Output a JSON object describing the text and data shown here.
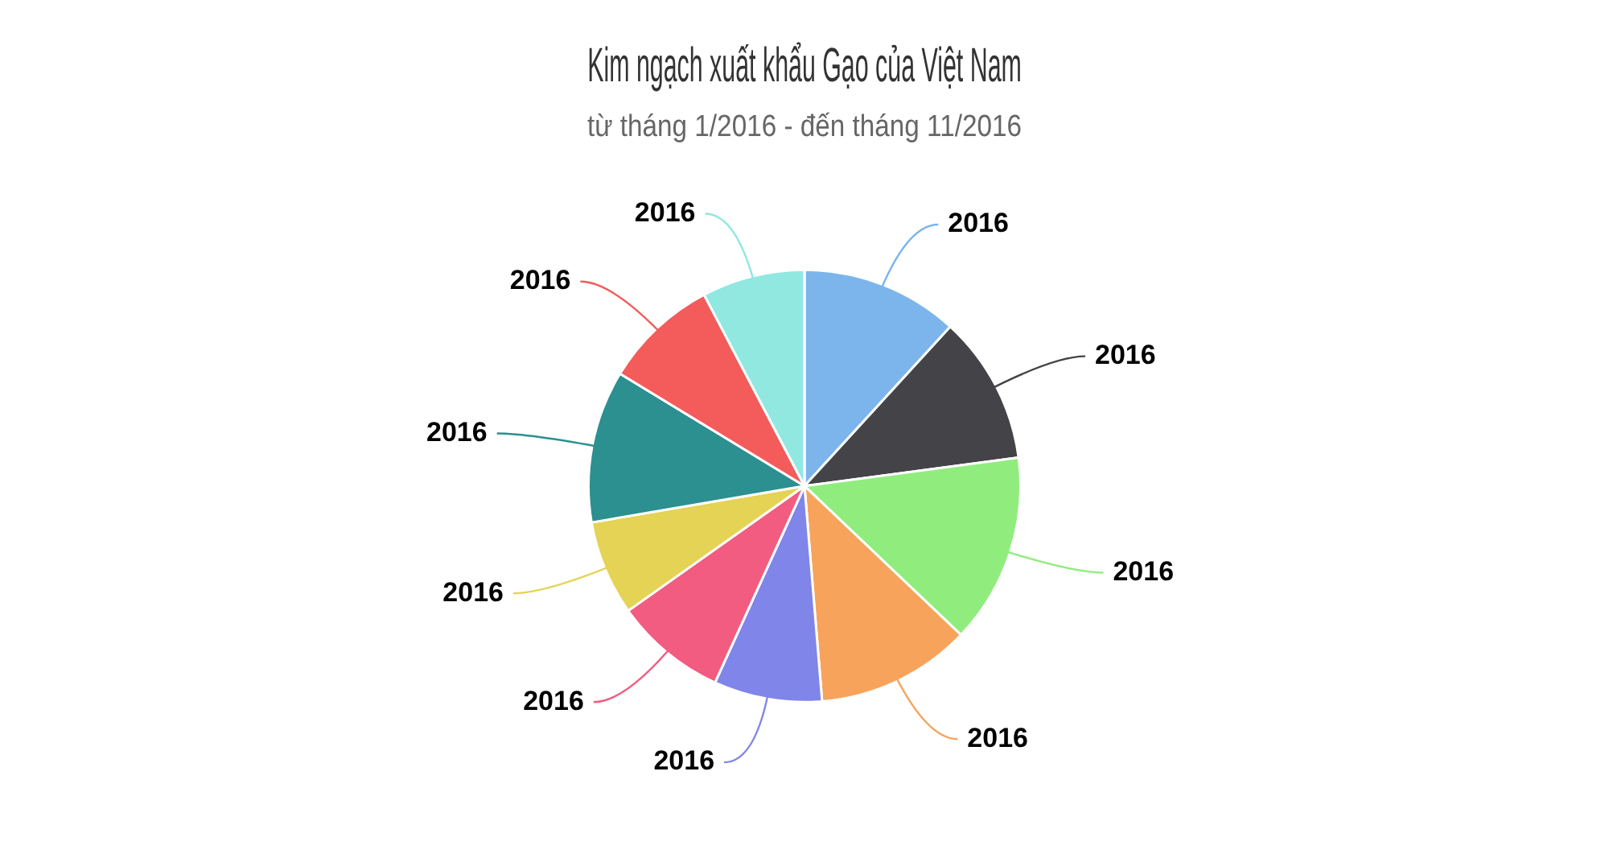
{
  "chart_data": {
    "type": "pie",
    "title": "Kim ngạch xuất khẩu Gạo của Việt Nam",
    "subtitle": "từ tháng 1/2016 - đến tháng 11/2016",
    "categories": [
      "2016",
      "2016",
      "2016",
      "2016",
      "2016",
      "2016",
      "2016",
      "2016",
      "2016",
      "2016"
    ],
    "values": [
      11.8,
      11.1,
      14.2,
      11.6,
      8.1,
      8.4,
      7.1,
      11.4,
      8.6,
      7.7
    ],
    "colors": [
      "#7cb5ec",
      "#434348",
      "#90ed7d",
      "#f7a35c",
      "#8085e9",
      "#f15c80",
      "#e4d354",
      "#2b908f",
      "#f45b5b",
      "#91e8e1"
    ]
  }
}
